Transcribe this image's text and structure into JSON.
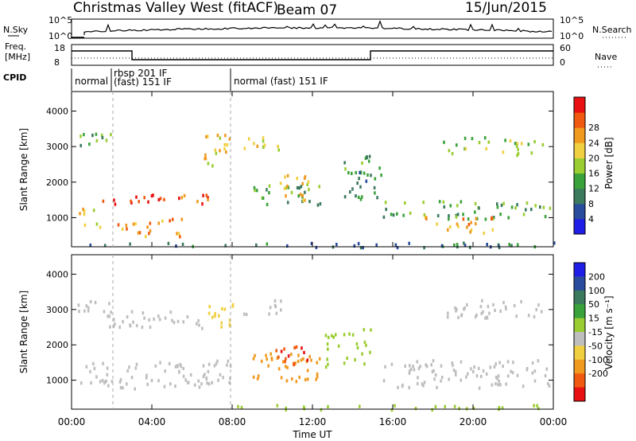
{
  "header": {
    "title": "Christmas Valley West (fitACF)",
    "beam": "Beam 07",
    "date": "15/Jun/2015"
  },
  "top_panels": {
    "nsky_label": "N.Sky",
    "nsearch_label": "N.Search",
    "noise_ticks_left": [
      "10^5",
      "10^0"
    ],
    "noise_ticks_right": [
      "10^5",
      "10^0"
    ],
    "freq_label_line1": "Freq.",
    "freq_label_line2": "[MHz]",
    "freq_ticks": [
      "18",
      "8"
    ],
    "nave_label": "Nave",
    "nave_ticks": [
      "60",
      "0"
    ],
    "cpid_label": "CPID",
    "cpid_segments": [
      {
        "line1": "normal",
        "line2": ""
      },
      {
        "line1": "rbsp 201 IF",
        "line2": "(fast) 151 IF"
      },
      {
        "line1": "normal (fast) 151 IF",
        "line2": ""
      }
    ]
  },
  "colors": {
    "power_scale": [
      "#1e1ee6",
      "#2a4c9c",
      "#3c7a5e",
      "#3aa23a",
      "#9acd32",
      "#f0d040",
      "#f09a20",
      "#f05a10",
      "#e81010"
    ],
    "velocity_scale": [
      "#1e1ee6",
      "#2a4c9c",
      "#3c7a5e",
      "#3aa23a",
      "#9acd32",
      "#bebebe",
      "#f0d040",
      "#f09a20",
      "#f05a10",
      "#e81010"
    ]
  },
  "chart_data": [
    {
      "type": "heatmap",
      "panel": "power",
      "ylabel": "Slant Range [km]",
      "xlabel": "Time UT",
      "xlim": [
        "00:00",
        "24:00"
      ],
      "ylim": [
        180,
        4550
      ],
      "y_ticks": [
        "1000",
        "2000",
        "3000",
        "4000"
      ],
      "x_ticks": [
        "00:00",
        "04:00",
        "08:00",
        "12:00",
        "16:00",
        "20:00",
        "00:00"
      ],
      "colorbar_label": "Power [dB]",
      "colorbar_ticks": [
        "4",
        "8",
        "12",
        "16",
        "20",
        "24",
        "28"
      ],
      "colorbar_range": [
        0,
        30
      ],
      "regions": [
        {
          "t0": 1.2,
          "t1": 7.2,
          "r0": 1400,
          "r1": 1700,
          "value": 26
        },
        {
          "t0": 0.3,
          "t1": 1.5,
          "r0": 700,
          "r1": 1300,
          "value": 20
        },
        {
          "t0": 1.8,
          "t1": 5.5,
          "r0": 500,
          "r1": 1000,
          "value": 22
        },
        {
          "t0": 6.5,
          "t1": 8.0,
          "r0": 2500,
          "r1": 3400,
          "value": 18
        },
        {
          "t0": 9.0,
          "t1": 12.5,
          "r0": 1400,
          "r1": 2000,
          "value": 12
        },
        {
          "t0": 10.0,
          "t1": 11.8,
          "r0": 1500,
          "r1": 2300,
          "value": 20
        },
        {
          "t0": 13.5,
          "t1": 15.5,
          "r0": 1500,
          "r1": 2800,
          "value": 10
        },
        {
          "t0": 15.5,
          "t1": 23.8,
          "r0": 1000,
          "r1": 1500,
          "value": 12
        },
        {
          "t0": 17.5,
          "t1": 21.0,
          "r0": 600,
          "r1": 1100,
          "value": 22
        },
        {
          "t0": 18.5,
          "t1": 23.5,
          "r0": 2800,
          "r1": 3300,
          "value": 14
        },
        {
          "t0": 0.3,
          "t1": 2.0,
          "r0": 2800,
          "r1": 3400,
          "value": 12
        },
        {
          "t0": 8.5,
          "t1": 10.5,
          "r0": 2900,
          "r1": 3300,
          "value": 18
        },
        {
          "t0": 0.5,
          "t1": 24.0,
          "r0": 200,
          "r1": 330,
          "value": 8
        }
      ]
    },
    {
      "type": "heatmap",
      "panel": "velocity",
      "ylabel": "Slant Range [km]",
      "xlabel": "Time UT",
      "xlim": [
        "00:00",
        "24:00"
      ],
      "ylim": [
        180,
        4550
      ],
      "y_ticks": [
        "1000",
        "2000",
        "3000",
        "4000"
      ],
      "x_ticks": [
        "00:00",
        "04:00",
        "08:00",
        "12:00",
        "16:00",
        "20:00",
        "00:00"
      ],
      "colorbar_label": "Velocity [m s⁻¹]",
      "colorbar_ticks": [
        "200",
        "100",
        "50",
        "15",
        "-15",
        "-50",
        "-100",
        "-200"
      ],
      "colorbar_range": [
        -250,
        250
      ],
      "regions": [
        {
          "t0": 0.3,
          "t1": 8.0,
          "r0": 800,
          "r1": 1600,
          "value": 0
        },
        {
          "t0": 6.8,
          "t1": 8.0,
          "r0": 2500,
          "r1": 3300,
          "value": -20
        },
        {
          "t0": 9.0,
          "t1": 12.5,
          "r0": 1000,
          "r1": 1800,
          "value": -80
        },
        {
          "t0": 10.0,
          "t1": 12.0,
          "r0": 1400,
          "r1": 2000,
          "value": -200
        },
        {
          "t0": 12.5,
          "t1": 15.0,
          "r0": 1400,
          "r1": 2500,
          "value": 30
        },
        {
          "t0": 15.5,
          "t1": 23.8,
          "r0": 800,
          "r1": 1600,
          "value": 0
        },
        {
          "t0": 18.5,
          "t1": 23.5,
          "r0": 2800,
          "r1": 3300,
          "value": 0
        },
        {
          "t0": 0.3,
          "t1": 2.0,
          "r0": 2800,
          "r1": 3300,
          "value": 0
        },
        {
          "t0": 8.5,
          "t1": 10.5,
          "r0": 2900,
          "r1": 3300,
          "value": 0
        },
        {
          "t0": 1.5,
          "t1": 6.5,
          "r0": 2500,
          "r1": 3000,
          "value": 0
        },
        {
          "t0": 8.0,
          "t1": 24.0,
          "r0": 200,
          "r1": 330,
          "value": 40
        }
      ]
    }
  ]
}
